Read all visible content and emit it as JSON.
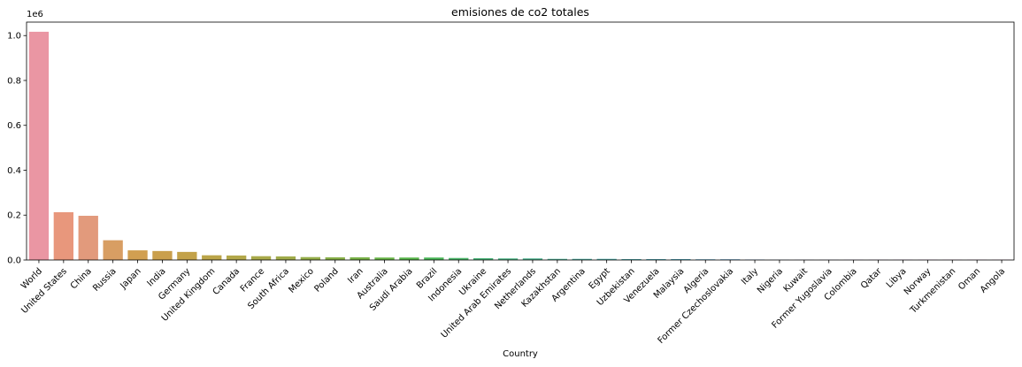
{
  "chart_data": {
    "type": "bar",
    "title": "emisiones de co2 totales",
    "xlabel": "Country",
    "ylabel": "",
    "y_scale_label": "1e6",
    "ylim": [
      0,
      1.06
    ],
    "yticks": [
      "0.0",
      "0.2",
      "0.4",
      "0.6",
      "0.8",
      "1.0"
    ],
    "grid": false,
    "categories": [
      "World",
      "United States",
      "China",
      "Russia",
      "Japan",
      "India",
      "Germany",
      "United Kingdom",
      "Canada",
      "France",
      "South Africa",
      "Mexico",
      "Poland",
      "Iran",
      "Australia",
      "Saudi Arabia",
      "Brazil",
      "Indonesia",
      "Ukraine",
      "United Arab Emirates",
      "Netherlands",
      "Kazakhstan",
      "Argentina",
      "Egypt",
      "Uzbekistan",
      "Venezuela",
      "Malaysia",
      "Algeria",
      "Former Czechoslovakia",
      "Italy",
      "Nigeria",
      "Kuwait",
      "Former Yugoslavia",
      "Colombia",
      "Qatar",
      "Libya",
      "Norway",
      "Turkmenistan",
      "Oman",
      "Angola"
    ],
    "values": [
      1.017,
      0.213,
      0.197,
      0.088,
      0.043,
      0.04,
      0.036,
      0.021,
      0.02,
      0.017,
      0.016,
      0.013,
      0.012,
      0.012,
      0.011,
      0.011,
      0.011,
      0.009,
      0.008,
      0.007,
      0.007,
      0.005,
      0.005,
      0.005,
      0.004,
      0.004,
      0.004,
      0.003,
      0.003,
      0.002,
      0.001,
      0.001,
      0.001,
      0.001,
      0.001,
      0.001,
      0.001,
      0.001,
      0.001,
      0.001
    ],
    "colors": [
      "#ea96a3",
      "#e8977c",
      "#e29a7c",
      "#d89e63",
      "#d19f51",
      "#ca9f4c",
      "#c3a24a",
      "#bba549",
      "#b3a84a",
      "#a9aa4a",
      "#a0ab4a",
      "#94ad49",
      "#87af48",
      "#78b147",
      "#68b447",
      "#58b64b",
      "#49b657",
      "#49b568",
      "#49b377",
      "#4ab283",
      "#4bb18d",
      "#4cb096",
      "#4cae9f",
      "#4dada7",
      "#4eacaf",
      "#4faab7",
      "#52a9bf",
      "#56a7c9",
      "#5ba5d3",
      "#67a2dd",
      "#7a9ce5",
      "#8e96ea",
      "#a18fe8",
      "#b188e6",
      "#c081e5",
      "#cd7ae1",
      "#da77d6",
      "#e279c5",
      "#e67cb6",
      "#e97fa8"
    ]
  }
}
